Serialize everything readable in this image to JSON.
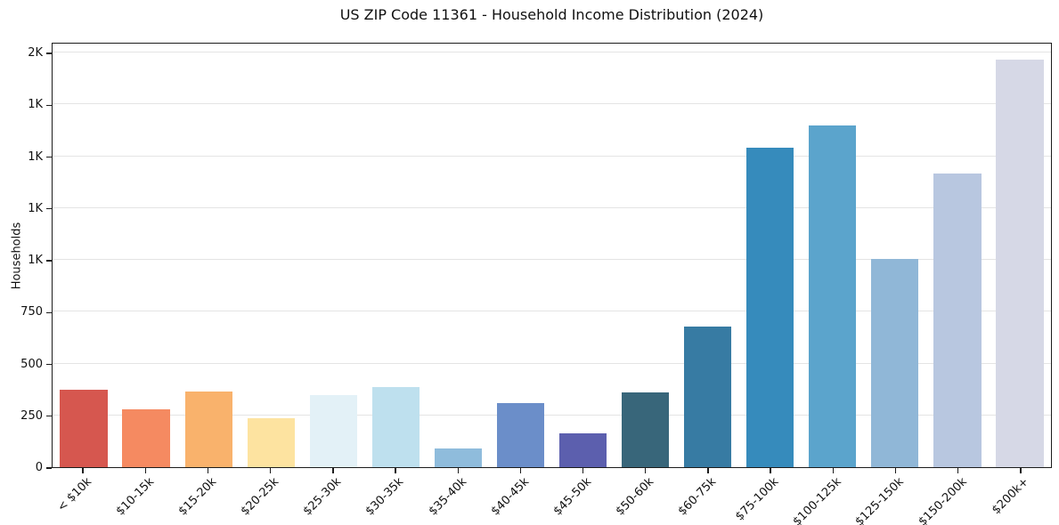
{
  "chart_data": {
    "type": "bar",
    "title": "US ZIP Code 11361 - Household Income Distribution (2024)",
    "xlabel": "",
    "ylabel": "Households",
    "ylim": [
      0,
      2051
    ],
    "grid": "horizontal-only",
    "grid_color": "#e4e4e4",
    "legend": "none",
    "background_color": "#ffffff",
    "categories": [
      "< $10k",
      "$10-15k",
      "$15-20k",
      "$20-25k",
      "$25-30k",
      "$30-35k",
      "$35-40k",
      "$40-45k",
      "$45-50k",
      "$50-60k",
      "$60-75k",
      "$75-100k",
      "$100-125k",
      "$125-150k",
      "$150-200k",
      "$200k+"
    ],
    "values": [
      375,
      280,
      365,
      235,
      348,
      385,
      92,
      310,
      165,
      360,
      678,
      1540,
      1650,
      1005,
      1415,
      1965
    ],
    "bar_colors": [
      "#d6574f",
      "#f58a61",
      "#f9b26c",
      "#fde3a0",
      "#e3f1f7",
      "#bee0ee",
      "#8fbcdc",
      "#6b8ec9",
      "#5c5fae",
      "#38667a",
      "#377ba3",
      "#368bbc",
      "#5ba4cc",
      "#90b7d7",
      "#b8c7e0",
      "#d6d8e6"
    ],
    "yticks": [
      {
        "value": 0,
        "label": "0"
      },
      {
        "value": 250,
        "label": "250"
      },
      {
        "value": 500,
        "label": "500"
      },
      {
        "value": 750,
        "label": "750"
      },
      {
        "value": 1000,
        "label": "1K"
      },
      {
        "value": 1250,
        "label": "1K"
      },
      {
        "value": 1500,
        "label": "1K"
      },
      {
        "value": 1750,
        "label": "1K"
      },
      {
        "value": 2000,
        "label": "2K"
      }
    ]
  }
}
